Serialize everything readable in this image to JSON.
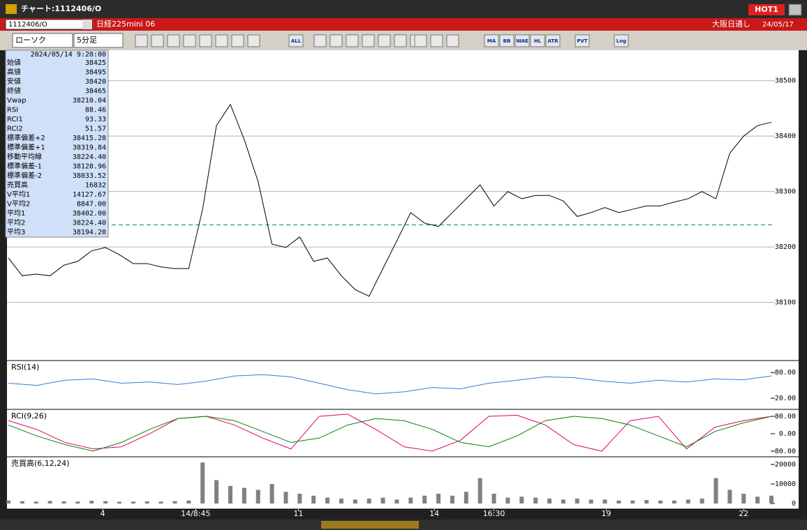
{
  "window": {
    "title": "チャート:1112406/O",
    "badge": "HOT1"
  },
  "symbol_bar": {
    "code": "1112406/O",
    "name": "日経225mini 06",
    "market": "大阪日通し",
    "date": "24/05/17"
  },
  "toolbar": {
    "chart_style": "ローソク",
    "interval": "5分足",
    "buttons": [
      "ALL",
      "MA",
      "BB",
      "WAE",
      "HL",
      "ATR",
      "PVT",
      "Log"
    ]
  },
  "info_panel": {
    "timestamp": "2024/05/14 9:20:00",
    "rows": [
      {
        "label": "始値",
        "value": "38425",
        "color": "#000000"
      },
      {
        "label": "高値",
        "value": "38495",
        "color": "#000000"
      },
      {
        "label": "安値",
        "value": "38420",
        "color": "#000000"
      },
      {
        "label": "終値",
        "value": "38465",
        "color": "#000000"
      },
      {
        "label": "Vwap",
        "value": "38210.04",
        "color": "#e000e0"
      },
      {
        "label": "RSI",
        "value": "88.46",
        "color": "#5a8fe0"
      },
      {
        "label": "RCI1",
        "value": "93.33",
        "color": "#e0006a"
      },
      {
        "label": "RCI2",
        "value": "51.57",
        "color": "#008000"
      },
      {
        "label": "標準偏差+2",
        "value": "38415.28",
        "color": "#a0a0a0"
      },
      {
        "label": "標準偏差+1",
        "value": "38319.84",
        "color": "#a0a0a0"
      },
      {
        "label": "移動平均線",
        "value": "38224.40",
        "color": "#000080"
      },
      {
        "label": "標準偏差-1",
        "value": "38128.96",
        "color": "#a0a0a0"
      },
      {
        "label": "標準偏差-2",
        "value": "38033.52",
        "color": "#a0a0a0"
      },
      {
        "label": "売買高",
        "value": "16832",
        "color": "#000000"
      },
      {
        "label": "V平均1",
        "value": "14127.67",
        "color": "#e00000"
      },
      {
        "label": "V平均2",
        "value": "8847.00",
        "color": "#e000e0"
      },
      {
        "label": "平均1",
        "value": "38402.00",
        "color": "#e00000"
      },
      {
        "label": "平均2",
        "value": "38224.40",
        "color": "#0000e0"
      },
      {
        "label": "平均3",
        "value": "38194.20",
        "color": "#008000"
      }
    ]
  },
  "chart_data": [
    {
      "type": "line",
      "ylim": [
        37995,
        38555
      ],
      "yticks": [
        38100,
        38200,
        38300,
        38400,
        38500
      ],
      "grid": true,
      "dashed_level": 38240,
      "dashed_color": "#008080",
      "series": [
        {
          "color": "#000000",
          "values": [
            38180,
            38148,
            38151,
            38148,
            38167,
            38174,
            38193,
            38199,
            38186,
            38170,
            38170,
            38164,
            38161,
            38161,
            38268,
            38419,
            38457,
            38394,
            38318,
            38205,
            38199,
            38218,
            38174,
            38180,
            38148,
            38123,
            38111,
            38161,
            38211,
            38262,
            38243,
            38237,
            38262,
            38287,
            38312,
            38274,
            38300,
            38287,
            38293,
            38293,
            38283,
            38255,
            38262,
            38271,
            38262,
            38268,
            38274,
            38274,
            38281,
            38287,
            38300,
            38287,
            38369,
            38400,
            38419,
            38425
          ]
        }
      ]
    },
    {
      "type": "line",
      "title": "RSI(14)",
      "ylim": [
        -6,
        108
      ],
      "yticks": [
        {
          "value": 80,
          "label": "80.00"
        },
        {
          "value": 20,
          "label": "20.00"
        }
      ],
      "series": [
        {
          "color": "#3a78e0",
          "values": [
            55,
            50,
            62,
            65,
            55,
            58,
            52,
            60,
            72,
            75,
            70,
            55,
            40,
            30,
            35,
            45,
            42,
            55,
            62,
            70,
            68,
            60,
            55,
            62,
            58,
            65,
            63,
            72
          ]
        }
      ]
    },
    {
      "type": "line",
      "title": "RCI(9,26)",
      "ylim": [
        -106,
        112
      ],
      "yticks": [
        {
          "value": 80,
          "label": "80.00"
        },
        {
          "value": 0,
          "label": "0.00"
        },
        {
          "value": -80,
          "label": "-80.00"
        }
      ],
      "series": [
        {
          "color": "#e0006a",
          "values": [
            60,
            20,
            -40,
            -70,
            -60,
            0,
            70,
            80,
            40,
            -20,
            -70,
            80,
            90,
            20,
            -60,
            -80,
            -30,
            80,
            85,
            40,
            -50,
            -80,
            60,
            80,
            -70,
            30,
            60,
            80
          ]
        },
        {
          "color": "#008000",
          "values": [
            40,
            -10,
            -50,
            -80,
            -40,
            20,
            70,
            80,
            60,
            10,
            -40,
            -20,
            40,
            70,
            60,
            20,
            -40,
            -60,
            -10,
            60,
            80,
            70,
            40,
            -10,
            -60,
            10,
            50,
            80
          ]
        }
      ]
    },
    {
      "type": "bar",
      "title": "売買高(6,12,24)",
      "ylim": [
        -2860,
        23930
      ],
      "yticks": [
        20000,
        10000,
        0
      ],
      "color": "#808080",
      "values": [
        1500,
        1200,
        1000,
        1300,
        1100,
        1000,
        1400,
        1200,
        900,
        1000,
        1100,
        1000,
        1200,
        1500,
        21000,
        12000,
        9000,
        8000,
        7000,
        10000,
        6000,
        5000,
        4000,
        3000,
        2500,
        2000,
        2500,
        3000,
        2000,
        3000,
        4000,
        5000,
        4000,
        6000,
        13000,
        5000,
        3000,
        3500,
        3000,
        2500,
        2000,
        2500,
        2000,
        2000,
        1500,
        1500,
        1800,
        1500,
        1500,
        2000,
        2500,
        13000,
        7000,
        5000,
        3500,
        4000
      ],
      "xticks": [
        {
          "value": 6.8,
          "label": "4"
        },
        {
          "value": 13.5,
          "label": "14/8:45"
        },
        {
          "value": 20.9,
          "label": "11"
        },
        {
          "value": 30.7,
          "label": "14"
        },
        {
          "value": 35,
          "label": "16:30"
        },
        {
          "value": 43.1,
          "label": "19"
        },
        {
          "value": 53,
          "label": "22"
        }
      ]
    }
  ]
}
